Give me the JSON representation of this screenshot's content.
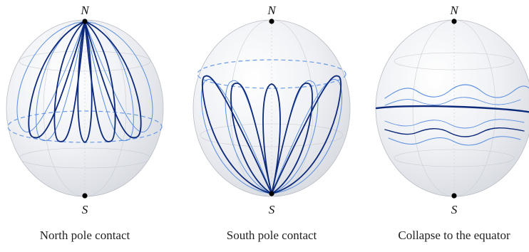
{
  "panels": [
    {
      "id": "north",
      "north_label": "N",
      "south_label": "S",
      "caption": "North pole contact"
    },
    {
      "id": "south",
      "north_label": "N",
      "south_label": "S",
      "caption": "South pole contact"
    },
    {
      "id": "equator",
      "north_label": "N",
      "south_label": "S",
      "caption": "Collapse to the equator"
    }
  ],
  "colors": {
    "dark_curve": "#0d2a7a",
    "light_curve": "#5b8fe0",
    "dashed_circle": "#6b9be6",
    "sphere_fill": "#eef0f4",
    "grid": "#c9ccd2",
    "pole_dot": "#000000"
  }
}
